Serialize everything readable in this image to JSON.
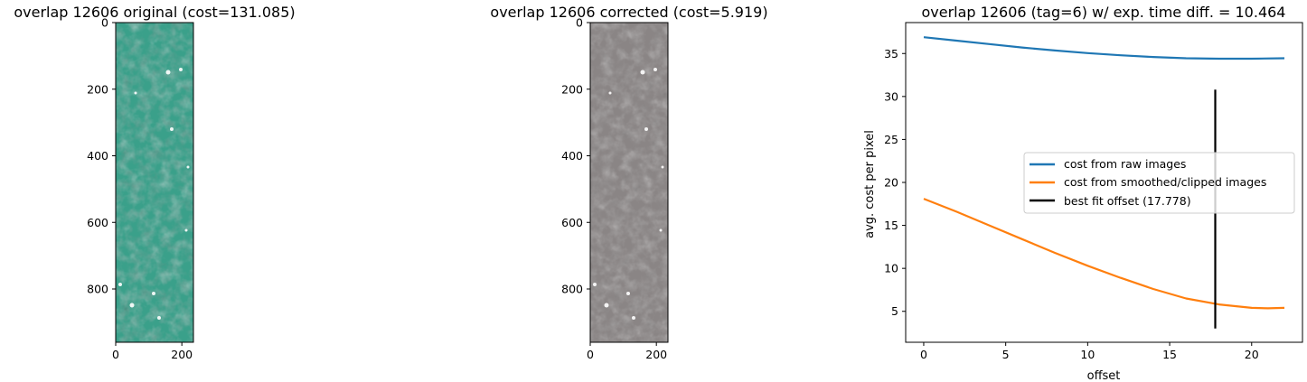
{
  "chart_data": [
    {
      "type": "image",
      "title": "overlap 12606 original (cost=131.085)",
      "image_tint": "#3aa08a",
      "x_ticks": [
        0,
        200
      ],
      "y_ticks": [
        0,
        200,
        400,
        600,
        800
      ],
      "xlim": [
        0,
        235
      ],
      "ylim": [
        960,
        0
      ]
    },
    {
      "type": "image",
      "title": "overlap 12606 corrected (cost=5.919)",
      "image_tint": "#8a8585",
      "x_ticks": [
        0,
        200
      ],
      "y_ticks": [
        0,
        200,
        400,
        600,
        800
      ],
      "xlim": [
        0,
        235
      ],
      "ylim": [
        960,
        0
      ]
    },
    {
      "type": "line",
      "title": "overlap 12606 (tag=6) w/ exp. time diff. = 10.464",
      "xlabel": "offset",
      "ylabel": "avg. cost per pixel",
      "xlim": [
        -1.1,
        23.1
      ],
      "ylim": [
        1.4,
        38.6
      ],
      "x_ticks": [
        0,
        5,
        10,
        15,
        20
      ],
      "y_ticks": [
        5,
        10,
        15,
        20,
        25,
        30,
        35
      ],
      "legend_position": "center-right",
      "series": [
        {
          "name": "cost from raw images",
          "color": "#1f77b4",
          "x": [
            0,
            2,
            4,
            6,
            8,
            10,
            12,
            14,
            16,
            18,
            20,
            22
          ],
          "y": [
            36.9,
            36.5,
            36.1,
            35.7,
            35.35,
            35.05,
            34.8,
            34.6,
            34.45,
            34.4,
            34.4,
            34.45
          ]
        },
        {
          "name": "cost from smoothed/clipped images",
          "color": "#ff7f0e",
          "x": [
            0,
            2,
            4,
            6,
            8,
            10,
            12,
            14,
            16,
            18,
            20,
            21,
            22
          ],
          "y": [
            18.1,
            16.6,
            15.0,
            13.4,
            11.8,
            10.3,
            8.9,
            7.6,
            6.5,
            5.8,
            5.4,
            5.35,
            5.4
          ]
        },
        {
          "name": "best fit offset (17.778)",
          "color": "#000000",
          "type": "vline",
          "x": [
            17.778,
            17.778
          ],
          "y": [
            3.0,
            30.8
          ]
        }
      ]
    }
  ]
}
